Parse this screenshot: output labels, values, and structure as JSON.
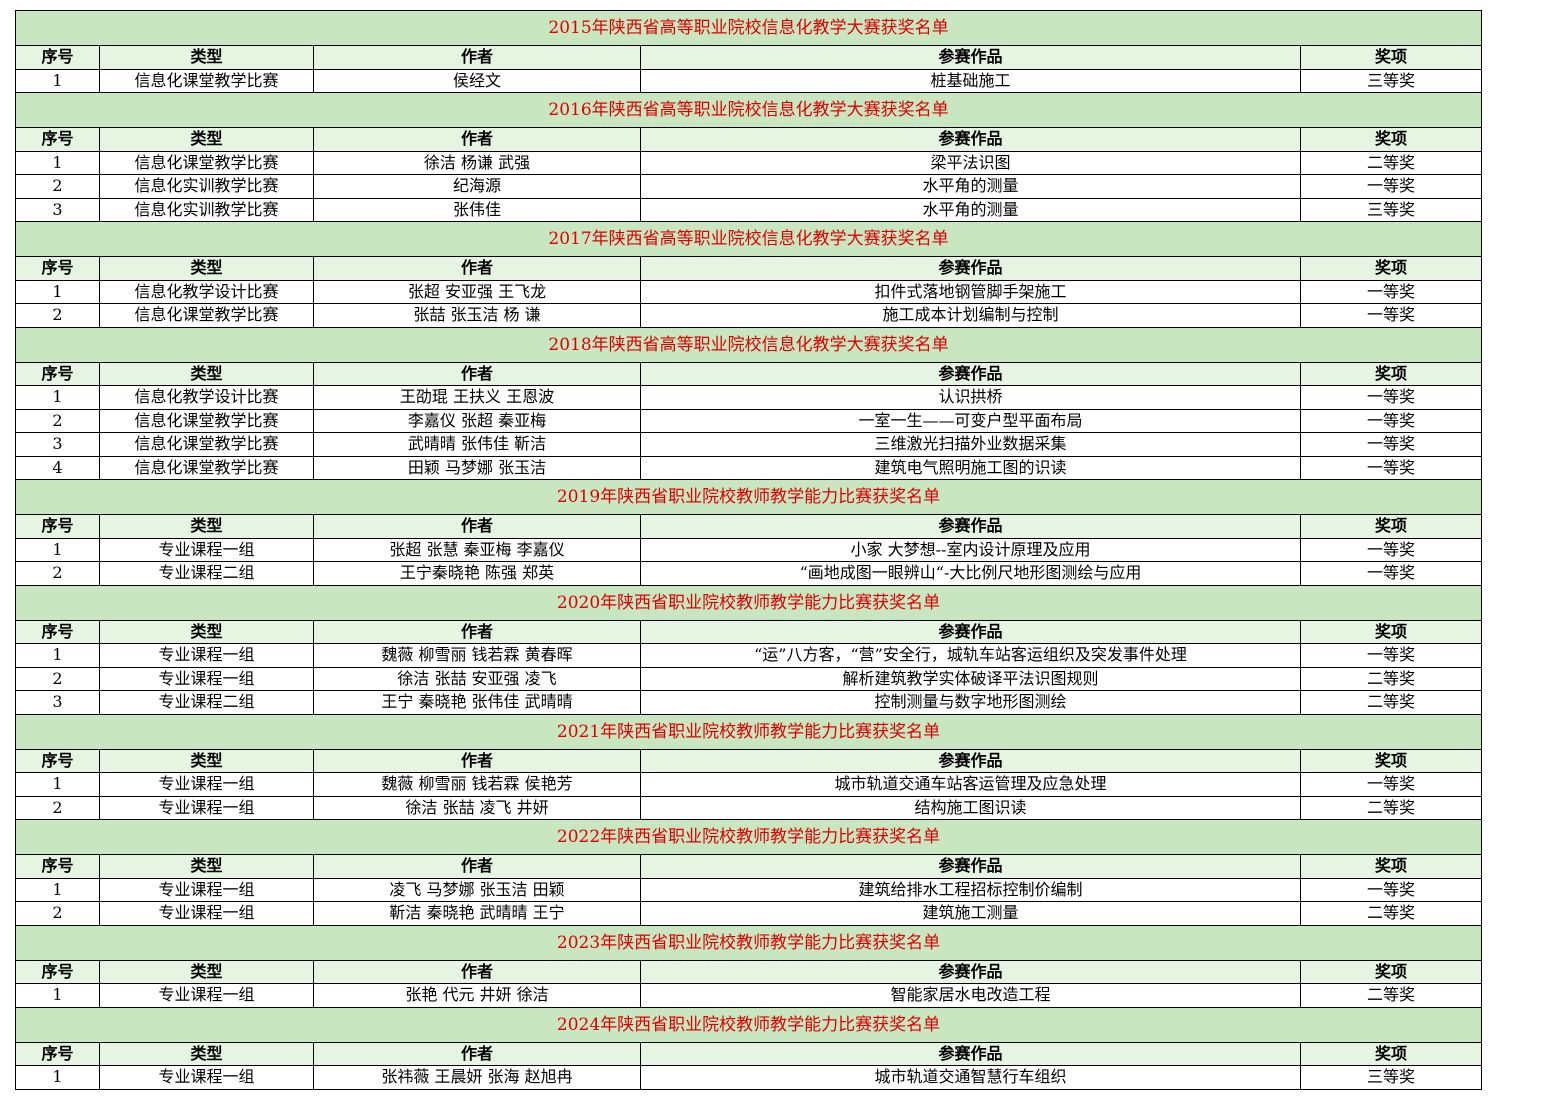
{
  "columns": [
    "序号",
    "类型",
    "作者",
    "参赛作品",
    "奖项"
  ],
  "sections": [
    {
      "title": "2015年陕西省高等职业院校信息化教学大赛获奖名单",
      "rows": [
        [
          "1",
          "信息化课堂教学比赛",
          "侯经文",
          "桩基础施工",
          "三等奖"
        ]
      ]
    },
    {
      "title": "2016年陕西省高等职业院校信息化教学大赛获奖名单",
      "rows": [
        [
          "1",
          "信息化课堂教学比赛",
          "徐洁  杨谦  武强",
          "梁平法识图",
          "二等奖"
        ],
        [
          "2",
          "信息化实训教学比赛",
          "纪海源",
          "水平角的测量",
          "一等奖"
        ],
        [
          "3",
          "信息化实训教学比赛",
          "张伟佳",
          "水平角的测量",
          "三等奖"
        ]
      ]
    },
    {
      "title": "2017年陕西省高等职业院校信息化教学大赛获奖名单",
      "rows": [
        [
          "1",
          "信息化教学设计比赛",
          "张超  安亚强  王飞龙",
          "扣件式落地钢管脚手架施工",
          "一等奖"
        ],
        [
          "2",
          "信息化课堂教学比赛",
          "张喆  张玉洁  杨  谦",
          "施工成本计划编制与控制",
          "一等奖"
        ]
      ]
    },
    {
      "title": "2018年陕西省高等职业院校信息化教学大赛获奖名单",
      "rows": [
        [
          "1",
          "信息化教学设计比赛",
          "王劭琨  王扶义  王恩波",
          "认识拱桥",
          "一等奖"
        ],
        [
          "2",
          "信息化课堂教学比赛",
          "李嘉仪  张超  秦亚梅",
          "一室一生——可变户型平面布局",
          "一等奖"
        ],
        [
          "3",
          "信息化课堂教学比赛",
          "武晴晴  张伟佳  靳洁",
          "三维激光扫描外业数据采集",
          "一等奖"
        ],
        [
          "4",
          "信息化课堂教学比赛",
          "田颖  马梦娜  张玉洁",
          "建筑电气照明施工图的识读",
          "一等奖"
        ]
      ]
    },
    {
      "title": "2019年陕西省职业院校教师教学能力比赛获奖名单",
      "rows": [
        [
          "1",
          "专业课程一组",
          "张超  张慧  秦亚梅  李嘉仪",
          "小家  大梦想--室内设计原理及应用",
          "一等奖"
        ],
        [
          "2",
          "专业课程二组",
          "王宁秦晓艳  陈强  郑英",
          "“画地成图一眼辨山“-大比例尺地形图测绘与应用",
          "一等奖"
        ]
      ]
    },
    {
      "title": "2020年陕西省职业院校教师教学能力比赛获奖名单",
      "rows": [
        [
          "1",
          "专业课程一组",
          "魏薇  柳雪丽  钱若霖  黄春晖",
          "“运”八方客，“营”安全行，城轨车站客运组织及突发事件处理",
          "一等奖"
        ],
        [
          "2",
          "专业课程一组",
          "徐洁  张喆  安亚强  凌飞",
          "解析建筑教学实体破译平法识图规则",
          "二等奖"
        ],
        [
          "3",
          "专业课程二组",
          "王宁  秦晓艳  张伟佳  武晴晴",
          "控制测量与数字地形图测绘",
          "二等奖"
        ]
      ]
    },
    {
      "title": "2021年陕西省职业院校教师教学能力比赛获奖名单",
      "rows": [
        [
          "1",
          "专业课程一组",
          "魏薇  柳雪丽  钱若霖  侯艳芳",
          "城市轨道交通车站客运管理及应急处理",
          "一等奖"
        ],
        [
          "2",
          "专业课程一组",
          "徐洁  张喆  凌飞  井妍",
          "结构施工图识读",
          "二等奖"
        ]
      ]
    },
    {
      "title": "2022年陕西省职业院校教师教学能力比赛获奖名单",
      "rows": [
        [
          "1",
          "专业课程一组",
          "凌飞  马梦娜  张玉洁  田颖",
          "建筑给排水工程招标控制价编制",
          "一等奖"
        ],
        [
          "2",
          "专业课程一组",
          "靳洁  秦晓艳  武晴晴  王宁",
          "建筑施工测量",
          "二等奖"
        ]
      ]
    },
    {
      "title": "2023年陕西省职业院校教师教学能力比赛获奖名单",
      "rows": [
        [
          "1",
          "专业课程一组",
          "张艳  代元  井妍  徐洁",
          "智能家居水电改造工程",
          "二等奖"
        ]
      ]
    },
    {
      "title": "2024年陕西省职业院校教师教学能力比赛获奖名单",
      "rows": [
        [
          "1",
          "专业课程一组",
          "张祎薇  王晨妍  张海  赵旭冉",
          "城市轨道交通智慧行车组织",
          "三等奖"
        ]
      ]
    }
  ]
}
